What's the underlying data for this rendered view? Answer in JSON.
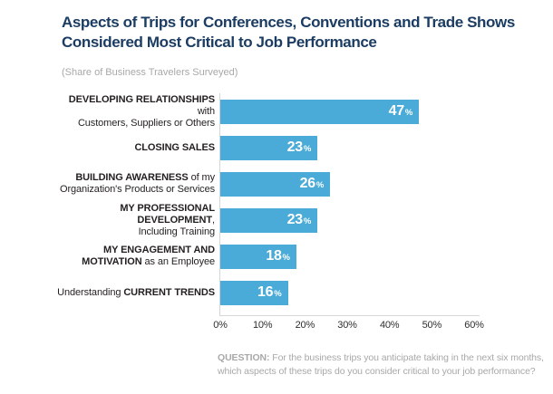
{
  "header": {
    "title_line1": "Aspects of Trips for Conferences, Conventions and Trade Shows",
    "title_line2": "Considered Most Critical to Job Performance",
    "subtitle": "(Share of Business Travelers Surveyed)",
    "title_color": "#1c3d63",
    "subtitle_color": "#a8a8a9"
  },
  "footer": {
    "label": "QUESTION:",
    "line1": "For the business trips you anticipate taking in the next six months,",
    "line2": "which aspects of these trips do you consider critical to your job performance?",
    "text_color": "#a8a8a9"
  },
  "chart_data": {
    "type": "bar",
    "orientation": "horizontal",
    "title": "Aspects of Trips for Conferences, Conventions and Trade Shows Considered Most Critical to Job Performance",
    "subtitle": "(Share of Business Travelers Surveyed)",
    "categories": [
      "DEVELOPING RELATIONSHIPS with Customers, Suppliers or Others",
      "CLOSING SALES",
      "BUILDING AWARENESS of my Organization's Products or Services",
      "MY PROFESSIONAL DEVELOPMENT, Including Training",
      "MY ENGAGEMENT AND MOTIVATION as an Employee",
      "Understanding CURRENT TRENDS"
    ],
    "values": [
      47,
      23,
      26,
      23,
      18,
      16
    ],
    "value_suffix": "%",
    "xlim": [
      0,
      60
    ],
    "x_ticks": [
      "0%",
      "10%",
      "20%",
      "30%",
      "40%",
      "50%",
      "60%"
    ],
    "bar_color": "#4aaad8",
    "value_text_color": "#ffffff",
    "axis_line_color": "#d5d5d5",
    "grid": false,
    "legend": false,
    "rows": [
      {
        "value": 47,
        "value_label": "47",
        "label_lines": [
          [
            {
              "t": "DEVELOPING RELATIONSHIPS",
              "b": true
            },
            {
              "t": " with",
              "b": false
            }
          ],
          [
            {
              "t": "Customers, Suppliers or Others",
              "b": false
            }
          ]
        ]
      },
      {
        "value": 23,
        "value_label": "23",
        "label_lines": [
          [
            {
              "t": "CLOSING SALES",
              "b": true
            }
          ]
        ]
      },
      {
        "value": 26,
        "value_label": "26",
        "label_lines": [
          [
            {
              "t": "BUILDING AWARENESS",
              "b": true
            },
            {
              "t": " of my",
              "b": false
            }
          ],
          [
            {
              "t": "Organization's Products or Services",
              "b": false
            }
          ]
        ]
      },
      {
        "value": 23,
        "value_label": "23",
        "label_lines": [
          [
            {
              "t": "MY PROFESSIONAL DEVELOPMENT",
              "b": true
            },
            {
              "t": ",",
              "b": false
            }
          ],
          [
            {
              "t": "Including Training",
              "b": false
            }
          ]
        ]
      },
      {
        "value": 18,
        "value_label": "18",
        "label_lines": [
          [
            {
              "t": "MY ENGAGEMENT AND",
              "b": true
            }
          ],
          [
            {
              "t": "MOTIVATION",
              "b": true
            },
            {
              "t": " as an Employee",
              "b": false
            }
          ]
        ]
      },
      {
        "value": 16,
        "value_label": "16",
        "label_lines": [
          [
            {
              "t": "Understanding ",
              "b": false
            },
            {
              "t": "CURRENT TRENDS",
              "b": true
            }
          ]
        ]
      }
    ]
  }
}
